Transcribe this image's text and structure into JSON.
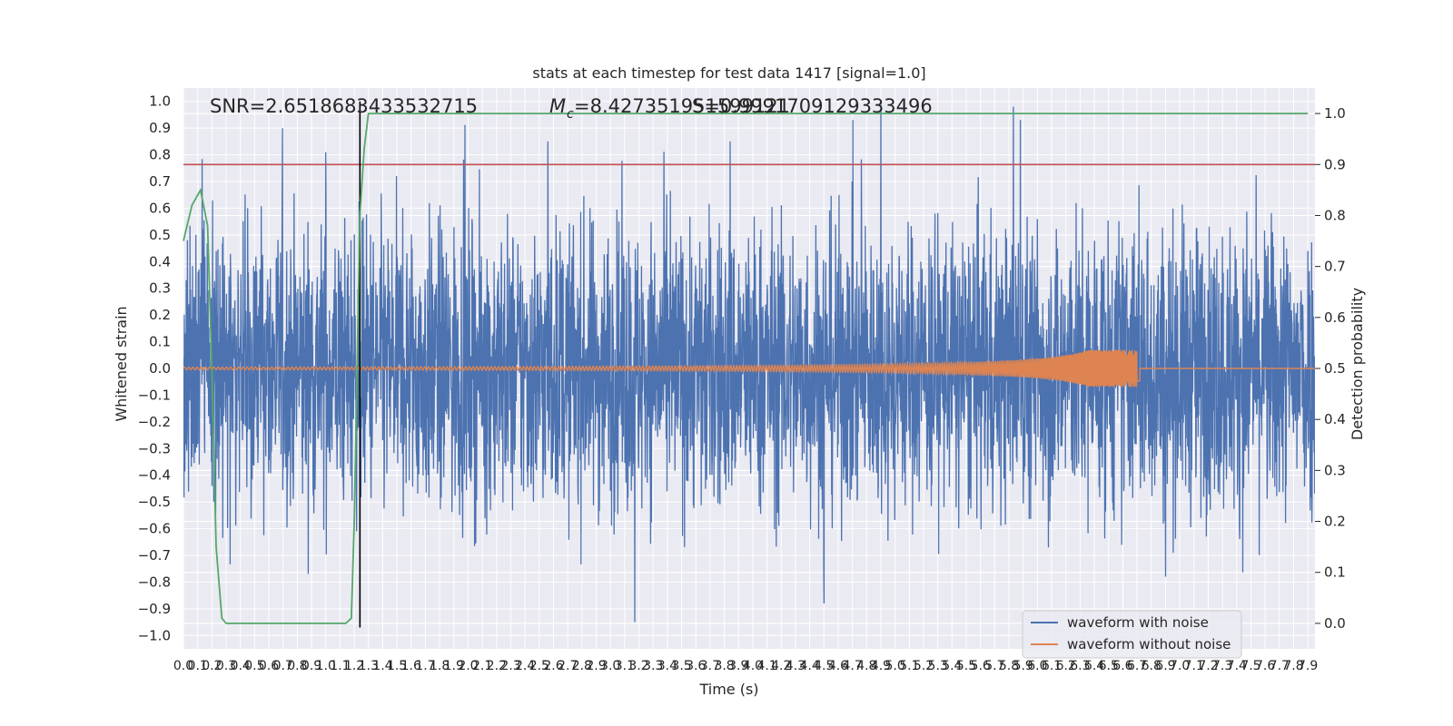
{
  "chart_data": {
    "type": "line",
    "title": "stats at each timestep for test data 1417 [signal=1.0]",
    "xlabel": "Time (s)",
    "ylabel": "Whitened strain",
    "y2label": "Detection probability",
    "xlim": [
      0.0,
      7.95
    ],
    "ylim": [
      -1.05,
      1.05
    ],
    "y2lim": [
      -0.05,
      1.05
    ],
    "grid": true,
    "legend_position": "bottom-right",
    "x_ticks": [
      "0.0",
      "0.1",
      "0.2",
      "0.3",
      "0.4",
      "0.5",
      "0.6",
      "0.7",
      "0.8",
      "0.9",
      "1.0",
      "1.1",
      "1.2",
      "1.3",
      "1.4",
      "1.5",
      "1.6",
      "1.7",
      "1.8",
      "1.9",
      "2.0",
      "2.1",
      "2.2",
      "2.3",
      "2.4",
      "2.5",
      "2.6",
      "2.7",
      "2.8",
      "2.9",
      "3.0",
      "3.1",
      "3.2",
      "3.3",
      "3.4",
      "3.5",
      "3.6",
      "3.7",
      "3.8",
      "3.9",
      "4.0",
      "4.1",
      "4.2",
      "4.3",
      "4.4",
      "4.5",
      "4.6",
      "4.7",
      "4.8",
      "4.9",
      "5.0",
      "5.1",
      "5.2",
      "5.3",
      "5.4",
      "5.5",
      "5.6",
      "5.7",
      "5.8",
      "5.9",
      "6.0",
      "6.1",
      "6.2",
      "6.3",
      "6.4",
      "6.5",
      "6.6",
      "6.7",
      "6.8",
      "6.9",
      "7.0",
      "7.1",
      "7.2",
      "7.3",
      "7.4",
      "7.5",
      "7.6",
      "7.7",
      "7.8",
      "7.9"
    ],
    "y_ticks": [
      "1.0",
      "0.9",
      "0.8",
      "0.7",
      "0.6",
      "0.5",
      "0.4",
      "0.3",
      "0.2",
      "0.1",
      "0.0",
      "−0.1",
      "−0.2",
      "−0.3",
      "−0.4",
      "−0.5",
      "−0.6",
      "−0.7",
      "−0.8",
      "−0.9",
      "−1.0"
    ],
    "y2_ticks": [
      "1.0",
      "0.9",
      "0.8",
      "0.7",
      "0.6",
      "0.5",
      "0.4",
      "0.3",
      "0.2",
      "0.1",
      "0.0"
    ],
    "annotations": {
      "snr": "SNR=2.6518683433532715",
      "mc": "=8.427351951599121",
      "mc_symbol": "M",
      "mc_sub": "c",
      "third": "S=0.9991709129333496"
    },
    "vline_x": 1.24,
    "threshold_y2": 0.9,
    "colors": {
      "noise": "#4c72b0",
      "clean": "#dd8452",
      "probability": "#55a868",
      "threshold": "#c44e52",
      "marker": "#000000",
      "background": "#eaeaf2"
    },
    "series": [
      {
        "name": "waveform with noise",
        "noise_amplitude_typical": 0.45,
        "notable_peaks": [
          [
            4.9,
            1.0
          ],
          [
            5.83,
            0.98
          ],
          [
            5.88,
            0.93
          ],
          [
            3.84,
            0.85
          ],
          [
            2.56,
            0.85
          ],
          [
            1.0,
            0.81
          ],
          [
            3.17,
            -0.95
          ],
          [
            4.5,
            -0.88
          ],
          [
            6.9,
            -0.78
          ]
        ]
      },
      {
        "name": "waveform without noise",
        "chirp_start": 0.0,
        "chirp_end": 6.72,
        "start_amplitude": 0.005,
        "peak_amplitude": 0.07
      },
      {
        "name": "",
        "x": [
          0.0,
          0.06,
          0.12,
          0.17,
          0.2,
          0.23,
          0.27,
          0.3,
          0.5,
          0.8,
          1.0,
          1.1,
          1.14,
          1.18,
          1.2,
          1.22,
          1.24,
          1.27,
          1.3,
          1.4,
          2.0,
          3.0,
          4.0,
          5.0,
          6.0,
          7.0,
          7.9
        ],
        "values": [
          0.75,
          0.82,
          0.85,
          0.78,
          0.5,
          0.15,
          0.01,
          0.0,
          0.0,
          0.0,
          0.0,
          0.0,
          0.0,
          0.01,
          0.2,
          0.5,
          0.8,
          0.93,
          1.0,
          1.0,
          1.0,
          1.0,
          1.0,
          1.0,
          1.0,
          1.0,
          1.0
        ]
      }
    ]
  }
}
